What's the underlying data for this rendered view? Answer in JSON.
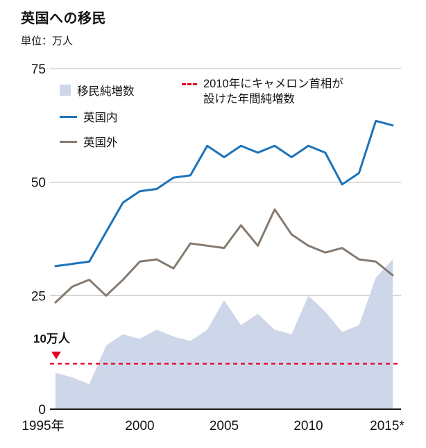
{
  "header": {
    "title": "英国への移民",
    "unit": "単位：万人"
  },
  "legend": {
    "cap_line1": "2010年にキャメロン首相が",
    "cap_line2": "設けた年間純増数"
  },
  "annotation": {
    "cap_value": "10万人"
  },
  "colors": {
    "area": "#cdd7e9",
    "ukline": "#1d72b8",
    "nonukline": "#857a70",
    "capline": "#e30021",
    "grid": "#c9c9c9",
    "axis": "#1a1a1a",
    "text": "#111111"
  },
  "chart_data": {
    "type": "area+line",
    "title": "英国への移民",
    "ylabel": "万人",
    "ylim": [
      0,
      75
    ],
    "yticks": [
      0,
      25,
      50,
      75
    ],
    "grid": true,
    "legend_position": "top-left",
    "x": [
      1995,
      1996,
      1997,
      1998,
      1999,
      2000,
      2001,
      2002,
      2003,
      2004,
      2005,
      2006,
      2007,
      2008,
      2009,
      2010,
      2011,
      2012,
      2013,
      2014,
      2015
    ],
    "xticks": [
      {
        "value": 1995,
        "label": "1995年"
      },
      {
        "value": 2000,
        "label": "2000"
      },
      {
        "value": 2005,
        "label": "2005"
      },
      {
        "value": 2010,
        "label": "2010"
      },
      {
        "value": 2015,
        "label": "2015*"
      }
    ],
    "series": [
      {
        "name": "移民純増数",
        "type": "area",
        "color": "#cdd7e9",
        "values": [
          8,
          7,
          5.5,
          14,
          16.5,
          15.5,
          17.5,
          16,
          15,
          17.5,
          24,
          18.5,
          21,
          17.5,
          16.5,
          25,
          21.5,
          17,
          18.5,
          29,
          33
        ]
      },
      {
        "name": "英国外",
        "type": "line",
        "color": "#857a70",
        "values": [
          23.5,
          27,
          28.5,
          25,
          28.5,
          32.5,
          33,
          31,
          36.5,
          36,
          35.5,
          40.5,
          36,
          44,
          38.5,
          36,
          34.5,
          35.5,
          33,
          32.5,
          29.5
        ]
      },
      {
        "name": "英国内",
        "type": "line",
        "color": "#1d72b8",
        "values": [
          31.5,
          32,
          32.5,
          39,
          45.5,
          48,
          48.5,
          51,
          51.5,
          58,
          55.5,
          58,
          56.5,
          58,
          55.5,
          58,
          56.5,
          49.5,
          52,
          63.5,
          62.5
        ]
      }
    ],
    "reference_line": {
      "value": 10,
      "style": "dashed",
      "color": "#e30021",
      "description": "2010年にキャメロン首相が設けた年間純増数"
    }
  }
}
